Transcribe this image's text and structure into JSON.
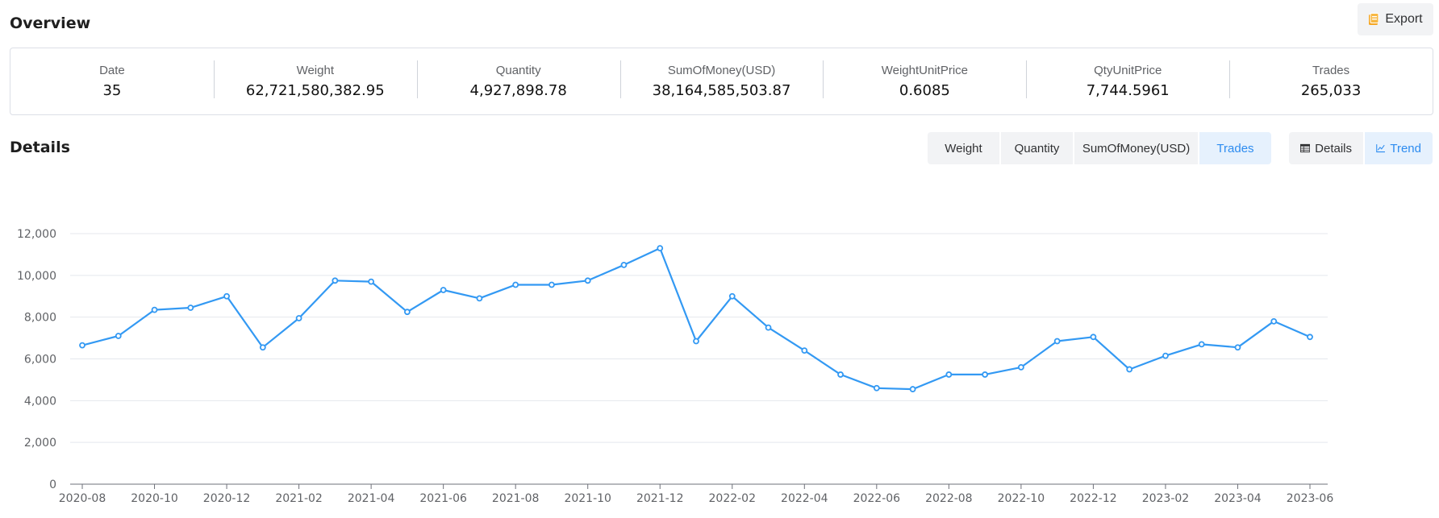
{
  "overview": {
    "title": "Overview",
    "export_label": "Export",
    "stats": [
      {
        "label": "Date",
        "value": "35"
      },
      {
        "label": "Weight",
        "value": "62,721,580,382.95"
      },
      {
        "label": "Quantity",
        "value": "4,927,898.78"
      },
      {
        "label": "SumOfMoney(USD)",
        "value": "38,164,585,503.87"
      },
      {
        "label": "WeightUnitPrice",
        "value": "0.6085"
      },
      {
        "label": "QtyUnitPrice",
        "value": "7,744.5961"
      },
      {
        "label": "Trades",
        "value": "265,033"
      }
    ]
  },
  "details": {
    "title": "Details",
    "metric_tabs": [
      "Weight",
      "Quantity",
      "SumOfMoney(USD)",
      "Trades"
    ],
    "active_metric": "Trades",
    "view_tabs": [
      "Details",
      "Trend"
    ],
    "active_view": "Trend"
  },
  "colors": {
    "accent": "#2d8cf0",
    "series": "#3399f3",
    "export_icon": "#f5a623"
  },
  "chart_data": {
    "type": "line",
    "x": [
      "2020-08",
      "2020-09",
      "2020-10",
      "2020-11",
      "2020-12",
      "2021-01",
      "2021-02",
      "2021-03",
      "2021-04",
      "2021-05",
      "2021-06",
      "2021-07",
      "2021-08",
      "2021-09",
      "2021-10",
      "2021-11",
      "2021-12",
      "2022-01",
      "2022-02",
      "2022-03",
      "2022-04",
      "2022-05",
      "2022-06",
      "2022-07",
      "2022-08",
      "2022-09",
      "2022-10",
      "2022-11",
      "2022-12",
      "2023-01",
      "2023-02",
      "2023-03",
      "2023-04",
      "2023-05",
      "2023-06"
    ],
    "x_tick_labels": [
      "2020-08",
      "2020-10",
      "2020-12",
      "2021-02",
      "2021-04",
      "2021-06",
      "2021-08",
      "2021-10",
      "2021-12",
      "2022-02",
      "2022-04",
      "2022-06",
      "2022-08",
      "2022-10",
      "2022-12",
      "2023-02",
      "2023-04",
      "2023-06"
    ],
    "y_tick_labels": [
      "0",
      "2,000",
      "4,000",
      "6,000",
      "8,000",
      "10,000",
      "12,000"
    ],
    "series": [
      {
        "values": [
          6650,
          7100,
          8350,
          8450,
          9000,
          6550,
          7950,
          9750,
          9700,
          8250,
          9300,
          8900,
          9550,
          9550,
          9750,
          10500,
          11300,
          6850,
          9000,
          7500,
          6400,
          5250,
          4600,
          4550,
          5250,
          5250,
          5600,
          6850,
          7050,
          5500,
          6150,
          6700,
          6550,
          7800,
          7050
        ]
      }
    ],
    "ylim": [
      0,
      12000
    ],
    "grid": true,
    "xlabel": "",
    "ylabel": ""
  }
}
